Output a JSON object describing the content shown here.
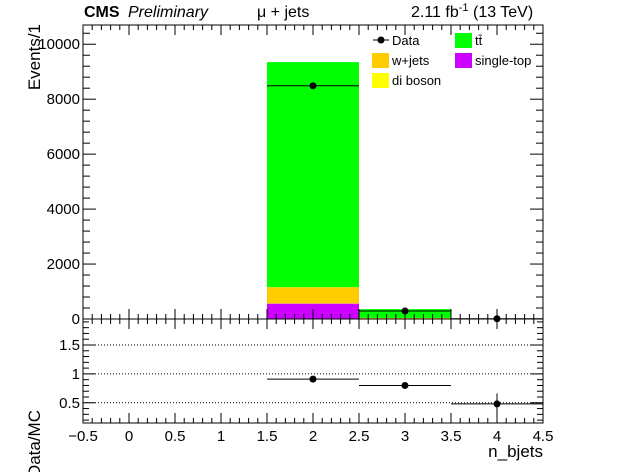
{
  "header": {
    "experiment": "CMS",
    "status": "Preliminary",
    "channel": "μ + jets",
    "lumi_value": "2.11 fb",
    "lumi_exp": "-1",
    "energy": "(13 TeV)"
  },
  "colors": {
    "ttbar": "#00ff00",
    "wjets": "#ffcc00",
    "diboson": "#ffff00",
    "singletop": "#cc00ff",
    "data": "#000000"
  },
  "legend": [
    {
      "key": "data",
      "label": "Data",
      "style": "marker"
    },
    {
      "key": "ttbar",
      "label": "tt̄",
      "style": "box"
    },
    {
      "key": "wjets",
      "label": "w+jets",
      "style": "box"
    },
    {
      "key": "singletop",
      "label": "single-top",
      "style": "box"
    },
    {
      "key": "diboson",
      "label": "di boson",
      "style": "box"
    }
  ],
  "chart_data": [
    {
      "type": "bar",
      "stacked": true,
      "ylabel": "Events/1",
      "xlim": [
        -0.5,
        4.5
      ],
      "ylim": [
        0,
        10700
      ],
      "yticks": [
        0,
        2000,
        4000,
        6000,
        8000,
        10000
      ],
      "bins": [
        {
          "low": 1.5,
          "high": 2.5,
          "singletop": 560,
          "diboson": 10,
          "wjets": 590,
          "ttbar": 8190
        },
        {
          "low": 2.5,
          "high": 3.5,
          "singletop": 20,
          "diboson": 0,
          "wjets": 20,
          "ttbar": 320
        },
        {
          "low": 3.5,
          "high": 4.5,
          "singletop": 2,
          "diboson": 0,
          "wjets": 2,
          "ttbar": 16
        }
      ],
      "data_points": [
        {
          "x": 2,
          "y": 8490,
          "xerr": 0.5
        },
        {
          "x": 3,
          "y": 290,
          "xerr": 0.5
        },
        {
          "x": 4,
          "y": 9,
          "xerr": 0.5
        }
      ]
    },
    {
      "type": "scatter",
      "ylabel": "Data/MC",
      "xlabel": "n_bjets",
      "xlim": [
        -0.5,
        4.5
      ],
      "ylim": [
        0.15,
        1.95
      ],
      "yticks": [
        0.5,
        1,
        1.5
      ],
      "ytick_labels": [
        "0.5",
        "1",
        "1.5"
      ],
      "gridlines": [
        0.5,
        1.0,
        1.5
      ],
      "xticks": [
        -0.5,
        0,
        0.5,
        1,
        1.5,
        2,
        2.5,
        3,
        3.5,
        4,
        4.5
      ],
      "xtick_labels": [
        "−0.5",
        "0",
        "0.5",
        "1",
        "1.5",
        "2",
        "2.5",
        "3",
        "3.5",
        "4",
        "4.5"
      ],
      "points": [
        {
          "x": 2,
          "y": 0.91,
          "xerr": 0.5,
          "yerr": 0.01
        },
        {
          "x": 3,
          "y": 0.8,
          "xerr": 0.5,
          "yerr": 0.05
        },
        {
          "x": 4,
          "y": 0.48,
          "xerr": 0.5,
          "yerr": 0.18
        }
      ]
    }
  ]
}
